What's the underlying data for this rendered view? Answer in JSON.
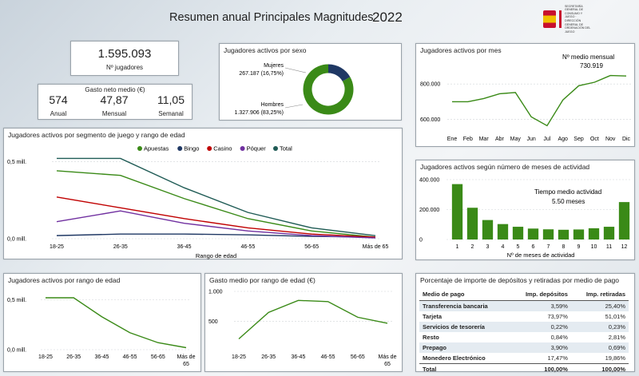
{
  "header": {
    "title": "Resumen anual Principales Magnitudes",
    "year": "2022",
    "logo_text": "SECRETARÍA GENERAL DE CONSUMO Y JUEGO · DIRECCIÓN GENERAL DE ORDENACIÓN DEL JUEGO"
  },
  "kpi": {
    "players_value": "1.595.093",
    "players_label": "Nº jugadores",
    "spend_title": "Gasto neto medio (€)",
    "spend": [
      {
        "value": "574",
        "label": "Anual"
      },
      {
        "value": "47,87",
        "label": "Mensual"
      },
      {
        "value": "11,05",
        "label": "Semanal"
      }
    ]
  },
  "colors": {
    "green": "#3a8a17",
    "navy": "#1f3864",
    "red": "#c00000",
    "purple": "#7030a0",
    "teal": "#1f5b55"
  },
  "chart_data": [
    {
      "id": "sex",
      "type": "pie",
      "title": "Jugadores activos por sexo",
      "slices": [
        {
          "name": "Mujeres",
          "label": "267.187 (16,75%)",
          "value": 16.75,
          "color": "#1f3864"
        },
        {
          "name": "Hombres",
          "label": "1.327.906 (83,25%)",
          "value": 83.25,
          "color": "#3a8a17"
        }
      ]
    },
    {
      "id": "month",
      "type": "line",
      "title": "Jugadores activos por mes",
      "annotation_label": "Nº medio mensual",
      "annotation_value": "730.919",
      "categories": [
        "Ene",
        "Feb",
        "Mar",
        "Abr",
        "May",
        "Jun",
        "Jul",
        "Ago",
        "Sep",
        "Oct",
        "Nov",
        "Dic"
      ],
      "values": [
        700000,
        700000,
        718000,
        745000,
        752000,
        615000,
        565000,
        710000,
        790000,
        810000,
        848000,
        845000
      ],
      "yticks": [
        {
          "v": 600000,
          "label": "600.000"
        },
        {
          "v": 800000,
          "label": "800.000"
        }
      ],
      "ylim": [
        540000,
        900000
      ]
    },
    {
      "id": "segment",
      "type": "line",
      "title": "Jugadores activos por segmento de juego y rango de edad",
      "xlabel": "Rango de edad",
      "categories": [
        "18-25",
        "26-35",
        "36-45",
        "46-55",
        "56-65",
        "Más de 65"
      ],
      "yticks": [
        {
          "v": 0,
          "label": "0,0 mill."
        },
        {
          "v": 0.5,
          "label": "0,5 mill."
        }
      ],
      "ylim": [
        0,
        0.6
      ],
      "series": [
        {
          "name": "Apuestas",
          "color": "#3a8a17",
          "values": [
            0.44,
            0.41,
            0.26,
            0.13,
            0.05,
            0.01
          ]
        },
        {
          "name": "Bingo",
          "color": "#1f3864",
          "values": [
            0.02,
            0.03,
            0.03,
            0.025,
            0.015,
            0.01
          ]
        },
        {
          "name": "Casino",
          "color": "#c00000",
          "values": [
            0.27,
            0.2,
            0.13,
            0.07,
            0.03,
            0.01
          ]
        },
        {
          "name": "Póquer",
          "color": "#7030a0",
          "values": [
            0.11,
            0.18,
            0.1,
            0.05,
            0.02,
            0.005
          ]
        },
        {
          "name": "Total",
          "color": "#1f5b55",
          "values": [
            0.52,
            0.52,
            0.33,
            0.17,
            0.07,
            0.02
          ]
        }
      ]
    },
    {
      "id": "activity",
      "type": "bar",
      "title": "Jugadores activos según número de meses de actividad",
      "xlabel": "Nº de meses de actividad",
      "annotation_label": "Tiempo medio actividad",
      "annotation_value": "5.50 meses",
      "categories": [
        "1",
        "2",
        "3",
        "4",
        "5",
        "6",
        "7",
        "8",
        "9",
        "10",
        "11",
        "12"
      ],
      "values": [
        370000,
        212000,
        130000,
        103000,
        85000,
        73000,
        68000,
        65000,
        67000,
        75000,
        85000,
        250000
      ],
      "yticks": [
        {
          "v": 0,
          "label": "0"
        },
        {
          "v": 200000,
          "label": "200.000"
        },
        {
          "v": 400000,
          "label": "400.000"
        }
      ],
      "ylim": [
        0,
        400000
      ]
    },
    {
      "id": "age",
      "type": "line",
      "title": "Jugadores activos por rango de edad",
      "categories": [
        "18-25",
        "26-35",
        "36-45",
        "46-55",
        "56-65",
        "Más de 65"
      ],
      "values": [
        0.52,
        0.52,
        0.33,
        0.17,
        0.07,
        0.02
      ],
      "yticks": [
        {
          "v": 0,
          "label": "0,0 mill."
        },
        {
          "v": 0.5,
          "label": "0,5 mill."
        }
      ],
      "ylim": [
        0,
        0.6
      ]
    },
    {
      "id": "spend",
      "type": "line",
      "title": "Gasto medio por rango de edad (€)",
      "categories": [
        "18-25",
        "26-35",
        "36-45",
        "46-55",
        "56-65",
        "Más de 65"
      ],
      "values": [
        210,
        650,
        850,
        830,
        570,
        470
      ],
      "yticks": [
        {
          "v": 500,
          "label": "500"
        },
        {
          "v": 1000,
          "label": "1.000"
        }
      ],
      "ylim": [
        150,
        1000
      ]
    }
  ],
  "deposits": {
    "title": "Porcentaje de importe de depósitos y retiradas por medio de pago",
    "headers": [
      "Medio de pago",
      "Imp. depósitos",
      "Imp. retiradas"
    ],
    "rows": [
      [
        "Transferencia bancaria",
        "3,59%",
        "25,40%"
      ],
      [
        "Tarjeta",
        "73,97%",
        "51,01%"
      ],
      [
        "Servicios de tesorería",
        "0,22%",
        "0,23%"
      ],
      [
        "Resto",
        "0,84%",
        "2,81%"
      ],
      [
        "Prepago",
        "3,90%",
        "0,69%"
      ],
      [
        "Monedero Electrónico",
        "17,47%",
        "19,86%"
      ]
    ],
    "total": [
      "Total",
      "100,00%",
      "100,00%"
    ]
  }
}
